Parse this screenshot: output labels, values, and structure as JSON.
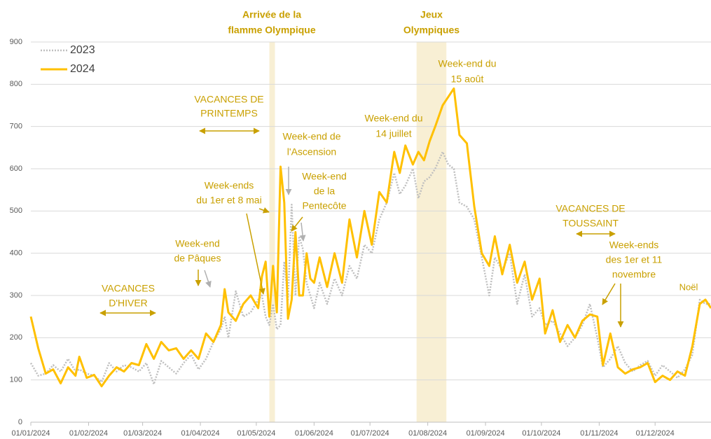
{
  "chart_data": {
    "type": "line",
    "x": [
      "01/01/2024",
      "05/01/2024",
      "09/01/2024",
      "13/01/2024",
      "17/01/2024",
      "21/01/2024",
      "25/01/2024",
      "27/01/2024",
      "31/01/2024",
      "04/02/2024",
      "08/02/2024",
      "12/02/2024",
      "16/02/2024",
      "20/02/2024",
      "24/02/2024",
      "28/02/2024",
      "03/03/2024",
      "07/03/2024",
      "11/03/2024",
      "15/03/2024",
      "19/03/2024",
      "23/03/2024",
      "27/03/2024",
      "31/03/2024",
      "04/04/2024",
      "08/04/2024",
      "12/04/2024",
      "14/04/2024",
      "16/04/2024",
      "20/04/2024",
      "24/04/2024",
      "28/04/2024",
      "02/05/2024",
      "04/05/2024",
      "06/05/2024",
      "08/05/2024",
      "10/05/2024",
      "12/05/2024",
      "14/05/2024",
      "16/05/2024",
      "18/05/2024",
      "20/05/2024",
      "22/05/2024",
      "24/05/2024",
      "26/05/2024",
      "28/05/2024",
      "30/05/2024",
      "01/06/2024",
      "04/06/2024",
      "08/06/2024",
      "12/06/2024",
      "16/06/2024",
      "20/06/2024",
      "24/06/2024",
      "28/06/2024",
      "02/07/2024",
      "06/07/2024",
      "10/07/2024",
      "14/07/2024",
      "17/07/2024",
      "20/07/2024",
      "24/07/2024",
      "27/07/2024",
      "30/07/2024",
      "02/08/2024",
      "05/08/2024",
      "09/08/2024",
      "12/08/2024",
      "15/08/2024",
      "18/08/2024",
      "22/08/2024",
      "26/08/2024",
      "30/08/2024",
      "03/09/2024",
      "06/09/2024",
      "10/09/2024",
      "14/09/2024",
      "18/09/2024",
      "22/09/2024",
      "26/09/2024",
      "30/09/2024",
      "03/10/2024",
      "07/10/2024",
      "11/10/2024",
      "15/10/2024",
      "19/10/2024",
      "23/10/2024",
      "27/10/2024",
      "31/10/2024",
      "03/11/2024",
      "07/11/2024",
      "11/11/2024",
      "15/11/2024",
      "19/11/2024",
      "23/11/2024",
      "27/11/2024",
      "01/12/2024",
      "05/12/2024",
      "09/12/2024",
      "13/12/2024",
      "17/12/2024",
      "21/12/2024",
      "25/12/2024",
      "28/12/2024",
      "31/12/2024"
    ],
    "series": [
      {
        "name": "2023",
        "color": "#bfbfbf",
        "dash": true,
        "values": [
          140,
          110,
          115,
          135,
          120,
          150,
          120,
          125,
          115,
          110,
          95,
          140,
          120,
          135,
          130,
          120,
          140,
          90,
          145,
          130,
          115,
          140,
          160,
          125,
          150,
          190,
          220,
          250,
          200,
          310,
          250,
          260,
          290,
          300,
          250,
          230,
          280,
          220,
          230,
          380,
          290,
          515,
          300,
          440,
          410,
          330,
          300,
          270,
          330,
          280,
          340,
          300,
          370,
          340,
          420,
          400,
          480,
          520,
          590,
          540,
          560,
          600,
          530,
          570,
          580,
          600,
          640,
          610,
          600,
          520,
          510,
          480,
          390,
          300,
          390,
          360,
          400,
          280,
          350,
          250,
          270,
          230,
          240,
          210,
          180,
          200,
          230,
          280,
          200,
          130,
          150,
          180,
          140,
          120,
          135,
          145,
          110,
          135,
          120,
          105,
          125,
          160,
          290,
          280,
          280
        ]
      },
      {
        "name": "2024",
        "color": "#ffc000",
        "dash": false,
        "values": [
          250,
          175,
          115,
          125,
          92,
          130,
          110,
          155,
          105,
          112,
          85,
          110,
          130,
          120,
          140,
          135,
          185,
          150,
          190,
          170,
          175,
          150,
          170,
          150,
          210,
          190,
          230,
          315,
          260,
          240,
          280,
          300,
          270,
          345,
          380,
          250,
          370,
          260,
          605,
          520,
          245,
          290,
          450,
          300,
          300,
          400,
          340,
          330,
          390,
          320,
          400,
          330,
          480,
          390,
          500,
          420,
          545,
          520,
          640,
          590,
          655,
          610,
          640,
          620,
          665,
          700,
          750,
          770,
          790,
          680,
          660,
          510,
          400,
          370,
          440,
          350,
          420,
          330,
          380,
          290,
          340,
          210,
          265,
          190,
          230,
          200,
          240,
          255,
          250,
          135,
          210,
          130,
          115,
          125,
          130,
          140,
          95,
          110,
          100,
          120,
          110,
          180,
          280,
          290,
          270
        ]
      }
    ],
    "xlim": [
      "01/01/2024",
      "31/12/2024"
    ],
    "xticks": [
      "01/01/2024",
      "01/02/2024",
      "01/03/2024",
      "01/04/2024",
      "01/05/2024",
      "01/06/2024",
      "01/07/2024",
      "01/08/2024",
      "01/09/2024",
      "01/10/2024",
      "01/11/2024",
      "01/12/2024"
    ],
    "ylim": [
      0,
      900
    ],
    "yticks": [
      0,
      100,
      200,
      300,
      400,
      500,
      600,
      700,
      800,
      900
    ],
    "grid": true,
    "legend": "top-left",
    "bands": [
      [
        "08/05/2024",
        "11/05/2024"
      ],
      [
        "26/07/2024",
        "11/08/2024"
      ]
    ],
    "annotations": [
      {
        "text": [
          "Arrivée de la",
          "flamme Olympique"
        ]
      },
      {
        "text": [
          "Jeux",
          "Olympiques"
        ]
      },
      {
        "text": [
          "VACANCES DE",
          "PRINTEMPS"
        ]
      },
      {
        "text": [
          "Week-end de",
          "l'Ascension"
        ]
      },
      {
        "text": [
          "Week-ends",
          "du 1er et 8 mai"
        ]
      },
      {
        "text": [
          "Week-end",
          "de la",
          "Pentecôte"
        ]
      },
      {
        "text": [
          "Week-end du",
          "14 juillet"
        ]
      },
      {
        "text": [
          "Week-end du",
          "15 août"
        ]
      },
      {
        "text": [
          "Week-end",
          "de Pâques"
        ]
      },
      {
        "text": [
          "VACANCES",
          "D'HIVER"
        ]
      },
      {
        "text": [
          "VACANCES DE",
          "TOUSSAINT"
        ]
      },
      {
        "text": [
          "Week-ends",
          "des 1er et 11",
          "novembre"
        ]
      },
      {
        "text": [
          "Noël"
        ]
      }
    ]
  }
}
